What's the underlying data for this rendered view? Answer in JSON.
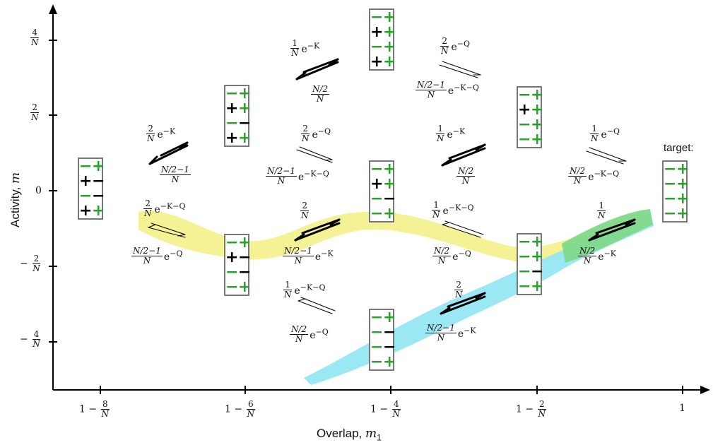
{
  "axes": {
    "x_title": "Overlap, ",
    "x_title_var": "m",
    "x_title_sub": "1",
    "y_title": "Activity, ",
    "y_title_var": "m",
    "x_ticks": [
      {
        "pre": "1 − ",
        "num": "8",
        "den": "N"
      },
      {
        "pre": "1 − ",
        "num": "6",
        "den": "N"
      },
      {
        "pre": "1 − ",
        "num": "4",
        "den": "N"
      },
      {
        "pre": "1 − ",
        "num": "2",
        "den": "N"
      },
      {
        "pre": "1",
        "num": "",
        "den": ""
      }
    ],
    "y_ticks": [
      {
        "sign": "",
        "num": "4",
        "den": "N"
      },
      {
        "sign": "",
        "num": "2",
        "den": "N"
      },
      {
        "sign": "",
        "num": "0",
        "den": ""
      },
      {
        "sign": "−",
        "num": "2",
        "den": "N"
      },
      {
        "sign": "−",
        "num": "4",
        "den": "N"
      }
    ]
  },
  "target_label": "target:",
  "states": {
    "s_left": [
      "−",
      "+",
      "+",
      "−",
      "−",
      "−",
      "+",
      "+"
    ],
    "s_2_up": [
      "−",
      "+",
      "+",
      "+",
      "−",
      "−",
      "+",
      "+"
    ],
    "s_2_down": [
      "−",
      "+",
      "+",
      "−",
      "−",
      "−",
      "−",
      "+"
    ],
    "s_3_top": [
      "−",
      "+",
      "+",
      "+",
      "−",
      "+",
      "+",
      "+"
    ],
    "s_3_mid": [
      "−",
      "+",
      "+",
      "+",
      "−",
      "−",
      "−",
      "+"
    ],
    "s_3_bot": [
      "−",
      "+",
      "−",
      "−",
      "−",
      "−",
      "−",
      "+"
    ],
    "s_4_up": [
      "−",
      "+",
      "+",
      "+",
      "−",
      "+",
      "−",
      "+"
    ],
    "s_4_down": [
      "−",
      "+",
      "−",
      "+",
      "−",
      "−",
      "−",
      "+"
    ],
    "s_target": [
      "−",
      "+",
      "−",
      "+",
      "−",
      "+",
      "−",
      "+"
    ]
  },
  "rates": {
    "r1_top_num": "2",
    "r1_top_den": "N",
    "r1_top_exp": "−K",
    "r1_bot_num": "N/2−1",
    "r1_bot_den": "N",
    "r2_top_num": "2",
    "r2_top_den": "N",
    "r2_top_exp": "−K−Q",
    "r2_bot_num": "N/2−1",
    "r2_bot_den": "N",
    "r2_bot_exp": "−Q",
    "r3_top_num": "1",
    "r3_top_den": "N",
    "r3_top_exp": "−K",
    "r3_bot_num": "N/2",
    "r3_bot_den": "N",
    "r4_top_num": "2",
    "r4_top_den": "N",
    "r4_top_exp": "−Q",
    "r4_bot_num": "N/2−1",
    "r4_bot_den": "N",
    "r4_bot_exp": "−K−Q",
    "r5_top_num": "2",
    "r5_top_den": "N",
    "r5_bot_num": "N/2−1",
    "r5_bot_den": "N",
    "r5_bot_exp": "−K",
    "r6_top_num": "1",
    "r6_top_den": "N",
    "r6_top_exp": "−K−Q",
    "r6_bot_num": "N/2",
    "r6_bot_den": "N",
    "r6_bot_exp": "−Q",
    "r7_top_num": "2",
    "r7_top_den": "N",
    "r7_top_exp": "−Q",
    "r7_bot_num": "N/2−1",
    "r7_bot_den": "N",
    "r7_bot_exp": "−K−Q",
    "r8_top_num": "1",
    "r8_top_den": "N",
    "r8_top_exp": "−K",
    "r8_bot_num": "N/2",
    "r8_bot_den": "N",
    "r9_top_num": "1",
    "r9_top_den": "N",
    "r9_top_exp": "−K−Q",
    "r9_bot_num": "N/2",
    "r9_bot_den": "N",
    "r9_bot_exp": "−Q",
    "r10_top_num": "2",
    "r10_top_den": "N",
    "r10_bot_num": "N/2−1",
    "r10_bot_den": "N",
    "r10_bot_exp": "−K",
    "r11_top_num": "1",
    "r11_top_den": "N",
    "r11_top_exp": "−Q",
    "r11_bot_num": "N/2",
    "r11_bot_den": "N",
    "r11_bot_exp": "−K−Q",
    "r12_top_num": "1",
    "r12_top_den": "N",
    "r12_bot_num": "N/2",
    "r12_bot_den": "N",
    "r12_bot_exp": "−K"
  },
  "colors": {
    "yellow_path": "#f4f08a",
    "cyan_path": "#8ee6f2",
    "green_overlap": "#7fd98a",
    "plus_minus_green": "#2ca02c",
    "box_border": "#777777"
  }
}
